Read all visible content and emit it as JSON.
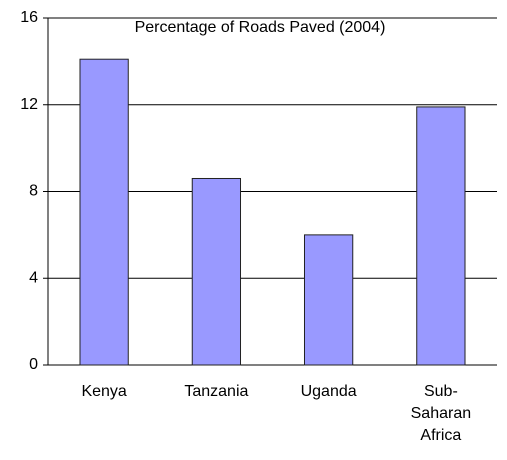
{
  "chart_data": {
    "type": "bar",
    "title": "Percentage of Roads Paved (2004)",
    "categories": [
      "Kenya",
      "Tanzania",
      "Uganda",
      "Sub-Saharan Africa"
    ],
    "values": [
      14.1,
      8.6,
      6.0,
      11.9
    ],
    "color": "#9999ff",
    "ylim": [
      0,
      16
    ],
    "yticks": [
      0,
      4,
      8,
      12,
      16
    ],
    "grid": true
  }
}
